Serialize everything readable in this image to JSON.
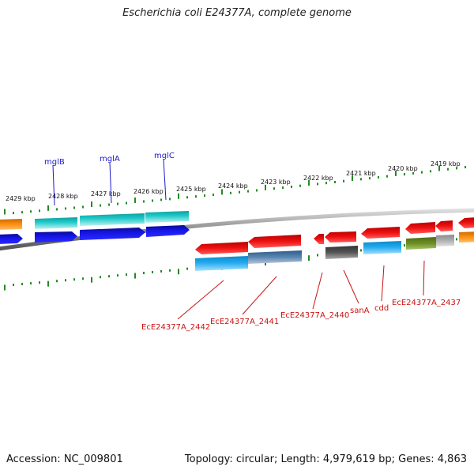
{
  "title": "Escherichia coli E24377A, complete genome",
  "footer": {
    "accession": "Accession: NC_009801",
    "summary": "Topology: circular; Length: 4,979,619 bp; Genes: 4,863"
  },
  "scale_labels": [
    "2429 kbp",
    "2428 kbp",
    "2427 kbp",
    "2426 kbp",
    "2425 kbp",
    "2424 kbp",
    "2423 kbp",
    "2422 kbp",
    "2421 kbp",
    "2420 kbp",
    "2419 kbp"
  ],
  "genes_top": [
    "mglB",
    "mglA",
    "mglC"
  ],
  "genes_bottom": [
    "EcE24377A_2442",
    "EcE24377A_2441",
    "EcE24377A_2440",
    "sanA",
    "cdd",
    "EcE24377A_2437"
  ],
  "colors": {
    "cyan": "#1ec8c8",
    "blue": "#1010e0",
    "orange": "#ff8c00",
    "red": "#ee1111",
    "light_blue": "#22aaee",
    "slate": "#4477aa",
    "dark_gray": "#555555",
    "olive": "#6b8e23",
    "light_gray": "#aaaaaa",
    "tick_green": "#228b22",
    "backbone": "#888888"
  }
}
